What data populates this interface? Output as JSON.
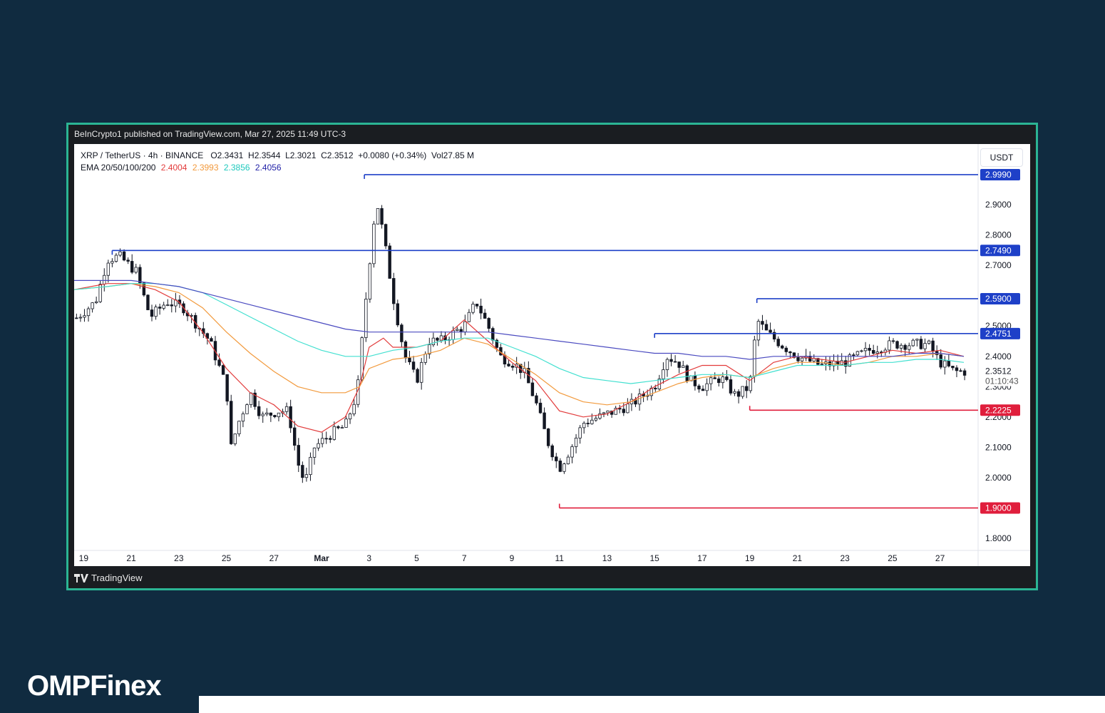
{
  "publish_bar": {
    "text": "BeInCrypto1 published on TradingView.com, Mar 27, 2025 11:49 UTC-3"
  },
  "legend": {
    "symbol_line": "XRP / TetherUS · 4h · BINANCE",
    "open": "O2.3431",
    "high": "H2.3544",
    "low": "L2.3021",
    "close": "C2.3512",
    "change": "+0.0080 (+0.34%)",
    "volume": "Vol27.85 M",
    "ema_label": "EMA 20/50/100/200",
    "ema_values": [
      "2.4004",
      "2.3993",
      "2.3856",
      "2.4056"
    ]
  },
  "currency_button": "USDT",
  "footer": {
    "label": "TradingView"
  },
  "brand": {
    "text": "OMPFinex"
  },
  "chart_data": {
    "type": "candlestick",
    "y_range": [
      1.76,
      3.1
    ],
    "price_ticks": [
      "1.8000",
      "1.9000",
      "2.0000",
      "2.1000",
      "2.2000",
      "2.3000",
      "2.4000",
      "2.5000",
      "2.7000",
      "2.8000",
      "2.9000"
    ],
    "date_ticks": [
      "19",
      "21",
      "23",
      "25",
      "27",
      "Mar",
      "3",
      "5",
      "7",
      "9",
      "11",
      "13",
      "15",
      "17",
      "19",
      "21",
      "23",
      "25",
      "27"
    ],
    "date_tick_values": [
      0,
      2,
      4,
      6,
      8,
      10,
      12,
      14,
      16,
      18,
      20,
      22,
      24,
      26,
      28,
      30,
      32,
      34,
      36
    ],
    "x_range": [
      -0.4,
      37.6
    ],
    "current_price": "2.3512",
    "countdown": "01:10:43",
    "horizontal_levels": [
      {
        "price": 2.999,
        "label": "2.9990",
        "color": "#1e40c8",
        "start_day": 11.8
      },
      {
        "price": 2.749,
        "label": "2.7490",
        "color": "#1e40c8",
        "start_day": 1.2
      },
      {
        "price": 2.59,
        "label": "2.5900",
        "color": "#1e40c8",
        "start_day": 28.3
      },
      {
        "price": 2.4751,
        "label": "2.4751",
        "color": "#1e40c8",
        "start_day": 24.0
      },
      {
        "price": 2.2225,
        "label": "2.2225",
        "color": "#e01e3c",
        "start_day": 28.0
      },
      {
        "price": 1.9,
        "label": "1.9000",
        "color": "#e01e3c",
        "start_day": 20.0
      }
    ],
    "ema_series": [
      {
        "name": "EMA 20",
        "color": "#e23b3b",
        "points": [
          [
            -0.4,
            2.62
          ],
          [
            1,
            2.64
          ],
          [
            2,
            2.64
          ],
          [
            3,
            2.62
          ],
          [
            4,
            2.58
          ],
          [
            5,
            2.48
          ],
          [
            6,
            2.36
          ],
          [
            7,
            2.28
          ],
          [
            8,
            2.24
          ],
          [
            9,
            2.17
          ],
          [
            10,
            2.15
          ],
          [
            11,
            2.2
          ],
          [
            11.6,
            2.3
          ],
          [
            12,
            2.43
          ],
          [
            12.6,
            2.46
          ],
          [
            13,
            2.43
          ],
          [
            14,
            2.43
          ],
          [
            15,
            2.45
          ],
          [
            16,
            2.52
          ],
          [
            17,
            2.45
          ],
          [
            18,
            2.38
          ],
          [
            19,
            2.32
          ],
          [
            20,
            2.22
          ],
          [
            21,
            2.2
          ],
          [
            22,
            2.21
          ],
          [
            23,
            2.25
          ],
          [
            24,
            2.3
          ],
          [
            25,
            2.34
          ],
          [
            26,
            2.37
          ],
          [
            27,
            2.37
          ],
          [
            28,
            2.32
          ],
          [
            29,
            2.38
          ],
          [
            30,
            2.4
          ],
          [
            31,
            2.39
          ],
          [
            32,
            2.38
          ],
          [
            33,
            2.4
          ],
          [
            34,
            2.42
          ],
          [
            35,
            2.41
          ],
          [
            36,
            2.42
          ],
          [
            37,
            2.4
          ]
        ]
      },
      {
        "name": "EMA 50",
        "color": "#f29a3d",
        "points": [
          [
            -0.4,
            2.62
          ],
          [
            1,
            2.63
          ],
          [
            2,
            2.64
          ],
          [
            3,
            2.63
          ],
          [
            4,
            2.61
          ],
          [
            5,
            2.56
          ],
          [
            6,
            2.48
          ],
          [
            7,
            2.41
          ],
          [
            8,
            2.35
          ],
          [
            9,
            2.3
          ],
          [
            10,
            2.28
          ],
          [
            11,
            2.28
          ],
          [
            11.6,
            2.3
          ],
          [
            12,
            2.36
          ],
          [
            13,
            2.39
          ],
          [
            14,
            2.4
          ],
          [
            15,
            2.42
          ],
          [
            16,
            2.46
          ],
          [
            17,
            2.44
          ],
          [
            18,
            2.39
          ],
          [
            19,
            2.34
          ],
          [
            20,
            2.28
          ],
          [
            21,
            2.25
          ],
          [
            22,
            2.24
          ],
          [
            23,
            2.25
          ],
          [
            24,
            2.28
          ],
          [
            25,
            2.31
          ],
          [
            26,
            2.33
          ],
          [
            27,
            2.34
          ],
          [
            28,
            2.33
          ],
          [
            29,
            2.36
          ],
          [
            30,
            2.38
          ],
          [
            31,
            2.38
          ],
          [
            32,
            2.37
          ],
          [
            33,
            2.38
          ],
          [
            34,
            2.4
          ],
          [
            35,
            2.4
          ],
          [
            36,
            2.41
          ],
          [
            37,
            2.4
          ]
        ]
      },
      {
        "name": "EMA 100",
        "color": "#42e0d0",
        "points": [
          [
            -0.4,
            2.62
          ],
          [
            1,
            2.63
          ],
          [
            2,
            2.64
          ],
          [
            3,
            2.64
          ],
          [
            4,
            2.63
          ],
          [
            5,
            2.61
          ],
          [
            6,
            2.57
          ],
          [
            7,
            2.53
          ],
          [
            8,
            2.49
          ],
          [
            9,
            2.45
          ],
          [
            10,
            2.42
          ],
          [
            11,
            2.4
          ],
          [
            12,
            2.4
          ],
          [
            13,
            2.42
          ],
          [
            14,
            2.43
          ],
          [
            15,
            2.45
          ],
          [
            16,
            2.46
          ],
          [
            17,
            2.46
          ],
          [
            18,
            2.43
          ],
          [
            19,
            2.4
          ],
          [
            20,
            2.36
          ],
          [
            21,
            2.33
          ],
          [
            22,
            2.32
          ],
          [
            23,
            2.31
          ],
          [
            24,
            2.32
          ],
          [
            25,
            2.33
          ],
          [
            26,
            2.34
          ],
          [
            27,
            2.34
          ],
          [
            28,
            2.33
          ],
          [
            29,
            2.35
          ],
          [
            30,
            2.37
          ],
          [
            31,
            2.37
          ],
          [
            32,
            2.37
          ],
          [
            33,
            2.38
          ],
          [
            34,
            2.38
          ],
          [
            35,
            2.39
          ],
          [
            36,
            2.39
          ],
          [
            37,
            2.38
          ]
        ]
      },
      {
        "name": "EMA 200",
        "color": "#4a4ac0",
        "points": [
          [
            -0.4,
            2.65
          ],
          [
            1,
            2.65
          ],
          [
            2,
            2.65
          ],
          [
            3,
            2.64
          ],
          [
            4,
            2.63
          ],
          [
            5,
            2.61
          ],
          [
            6,
            2.59
          ],
          [
            7,
            2.57
          ],
          [
            8,
            2.55
          ],
          [
            9,
            2.53
          ],
          [
            10,
            2.51
          ],
          [
            11,
            2.49
          ],
          [
            12,
            2.48
          ],
          [
            13,
            2.48
          ],
          [
            14,
            2.48
          ],
          [
            15,
            2.48
          ],
          [
            16,
            2.48
          ],
          [
            17,
            2.48
          ],
          [
            18,
            2.47
          ],
          [
            19,
            2.46
          ],
          [
            20,
            2.45
          ],
          [
            21,
            2.44
          ],
          [
            22,
            2.43
          ],
          [
            23,
            2.42
          ],
          [
            24,
            2.41
          ],
          [
            25,
            2.41
          ],
          [
            26,
            2.4
          ],
          [
            27,
            2.4
          ],
          [
            28,
            2.39
          ],
          [
            29,
            2.4
          ],
          [
            30,
            2.4
          ],
          [
            31,
            2.4
          ],
          [
            32,
            2.4
          ],
          [
            33,
            2.4
          ],
          [
            34,
            2.4
          ],
          [
            35,
            2.41
          ],
          [
            36,
            2.41
          ],
          [
            37,
            2.4
          ]
        ]
      }
    ],
    "candle_anchors": [
      [
        -0.4,
        2.52
      ],
      [
        0.5,
        2.58
      ],
      [
        1.0,
        2.72
      ],
      [
        1.5,
        2.73
      ],
      [
        2.2,
        2.68
      ],
      [
        2.8,
        2.53
      ],
      [
        3.5,
        2.58
      ],
      [
        4.2,
        2.56
      ],
      [
        4.6,
        2.52
      ],
      [
        5.3,
        2.45
      ],
      [
        6.0,
        2.3
      ],
      [
        6.2,
        2.1
      ],
      [
        6.5,
        2.18
      ],
      [
        7.0,
        2.28
      ],
      [
        7.5,
        2.2
      ],
      [
        8.2,
        2.22
      ],
      [
        8.6,
        2.22
      ],
      [
        9.0,
        2.05
      ],
      [
        9.3,
        1.98
      ],
      [
        9.7,
        2.1
      ],
      [
        10.5,
        2.15
      ],
      [
        11.0,
        2.17
      ],
      [
        11.5,
        2.28
      ],
      [
        11.9,
        2.62
      ],
      [
        12.3,
        2.92
      ],
      [
        12.6,
        2.8
      ],
      [
        13.0,
        2.6
      ],
      [
        13.5,
        2.4
      ],
      [
        14.0,
        2.32
      ],
      [
        14.5,
        2.45
      ],
      [
        15.0,
        2.45
      ],
      [
        16.0,
        2.5
      ],
      [
        16.5,
        2.58
      ],
      [
        17.0,
        2.5
      ],
      [
        17.5,
        2.4
      ],
      [
        18.0,
        2.38
      ],
      [
        18.5,
        2.35
      ],
      [
        19.0,
        2.25
      ],
      [
        19.5,
        2.12
      ],
      [
        20.0,
        2.03
      ],
      [
        20.5,
        2.1
      ],
      [
        21.0,
        2.18
      ],
      [
        22.0,
        2.21
      ],
      [
        23.0,
        2.24
      ],
      [
        24.0,
        2.3
      ],
      [
        24.5,
        2.4
      ],
      [
        25.0,
        2.38
      ],
      [
        25.5,
        2.32
      ],
      [
        26.0,
        2.3
      ],
      [
        26.8,
        2.33
      ],
      [
        27.4,
        2.27
      ],
      [
        28.0,
        2.3
      ],
      [
        28.3,
        2.52
      ],
      [
        28.7,
        2.48
      ],
      [
        29.3,
        2.44
      ],
      [
        30.0,
        2.4
      ],
      [
        31.0,
        2.37
      ],
      [
        32.0,
        2.38
      ],
      [
        33.0,
        2.42
      ],
      [
        34.0,
        2.44
      ],
      [
        35.0,
        2.44
      ],
      [
        35.5,
        2.44
      ],
      [
        36.0,
        2.38
      ],
      [
        36.6,
        2.35
      ],
      [
        37.0,
        2.35
      ]
    ]
  }
}
